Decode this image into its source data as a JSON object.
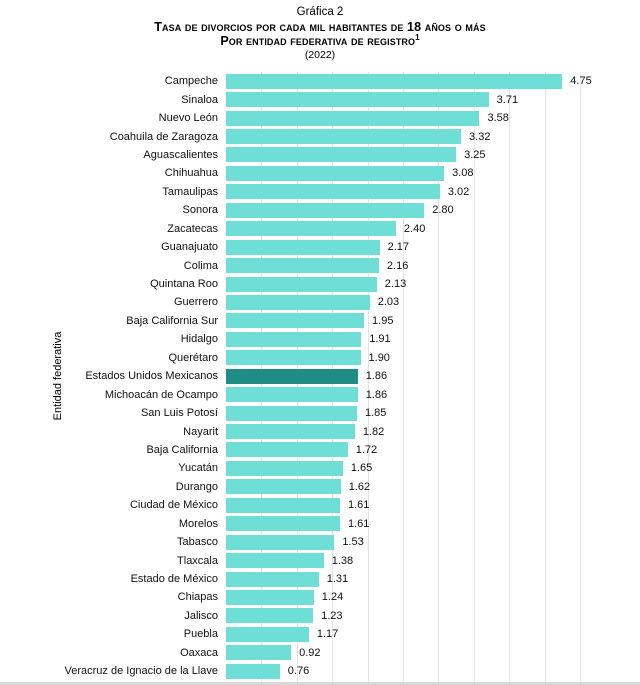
{
  "header": {
    "graph_label": "Gráfica 2",
    "title_line1": "Tasa de divorcios por cada mil habitantes de 18 años o más",
    "title_line2": "Por entidad federativa de registro",
    "title_footnote_sup": "1",
    "year": "(2022)"
  },
  "chart_data": {
    "type": "bar",
    "orientation": "horizontal",
    "title": "Tasa de divorcios por cada mil habitantes de 18 años o más por entidad federativa de registro (2022)",
    "xlabel": "",
    "ylabel": "Entidad federativa",
    "xlim": [
      0,
      5
    ],
    "grid": true,
    "grid_step": 0.5,
    "legend": "none",
    "bar_color": "#6FDED6",
    "highlight_color": "#1F8D86",
    "gridline_color": "#E3E3E3",
    "value_label_format": "2-decimals",
    "highlight_category": "Estados Unidos Mexicanos",
    "categories": [
      "Campeche",
      "Sinaloa",
      "Nuevo León",
      "Coahuila de Zaragoza",
      "Aguascalientes",
      "Chihuahua",
      "Tamaulipas",
      "Sonora",
      "Zacatecas",
      "Guanajuato",
      "Colima",
      "Quintana Roo",
      "Guerrero",
      "Baja California Sur",
      "Hidalgo",
      "Querétaro",
      "Estados Unidos Mexicanos",
      "Michoacán de Ocampo",
      "San Luis Potosí",
      "Nayarit",
      "Baja California",
      "Yucatán",
      "Durango",
      "Ciudad de México",
      "Morelos",
      "Tabasco",
      "Tlaxcala",
      "Estado de México",
      "Chiapas",
      "Jalisco",
      "Puebla",
      "Oaxaca",
      "Veracruz de Ignacio de la Llave"
    ],
    "values": [
      4.75,
      3.71,
      3.58,
      3.32,
      3.25,
      3.08,
      3.02,
      2.8,
      2.4,
      2.17,
      2.16,
      2.13,
      2.03,
      1.95,
      1.91,
      1.9,
      1.86,
      1.86,
      1.85,
      1.82,
      1.72,
      1.65,
      1.62,
      1.61,
      1.61,
      1.53,
      1.38,
      1.31,
      1.24,
      1.23,
      1.17,
      0.92,
      0.76
    ]
  }
}
